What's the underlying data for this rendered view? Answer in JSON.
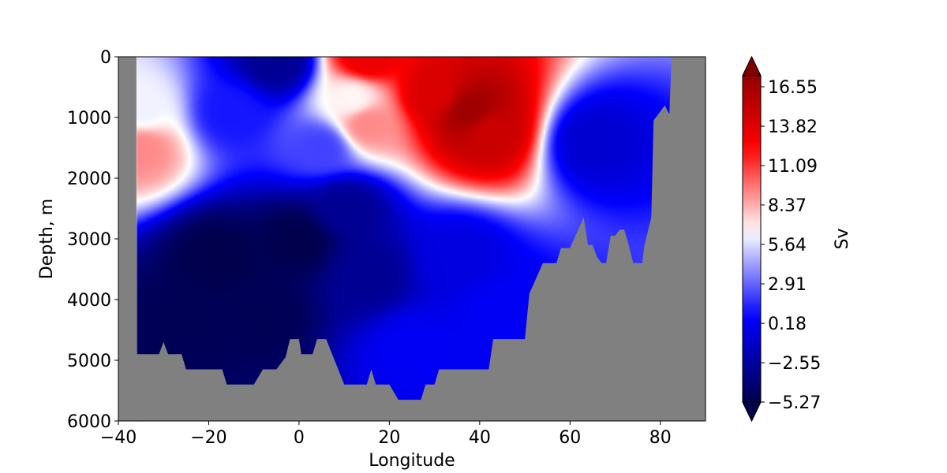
{
  "chart_data": {
    "type": "heatmap",
    "title": "",
    "xlabel": "Longitude",
    "ylabel": "Depth, m",
    "xlim": [
      -40,
      90
    ],
    "ylim": [
      6000,
      0
    ],
    "xticks": [
      -40,
      -20,
      0,
      20,
      40,
      60,
      80
    ],
    "xtick_labels": [
      "−40",
      "−20",
      "0",
      "20",
      "40",
      "60",
      "80"
    ],
    "yticks": [
      0,
      1000,
      2000,
      3000,
      4000,
      5000,
      6000
    ],
    "ytick_labels": [
      "0",
      "1000",
      "2000",
      "3000",
      "4000",
      "5000",
      "6000"
    ],
    "colorbar": {
      "label": "Sv",
      "min": -5.27,
      "max": 17.9,
      "extend": "both",
      "colormap": "seismic",
      "ticks": [
        -5.27,
        -2.55,
        0.18,
        2.91,
        5.64,
        8.37,
        11.09,
        13.82,
        16.55
      ],
      "tick_labels": [
        "−5.27",
        "−2.55",
        "0.18",
        "2.91",
        "5.64",
        "8.37",
        "11.09",
        "13.82",
        "16.55"
      ]
    },
    "land_color": "#808080",
    "ocean_west_edge_lon": -36,
    "bathymetry": [
      [
        -36,
        4900
      ],
      [
        -31,
        4900
      ],
      [
        -30,
        4700
      ],
      [
        -29,
        4900
      ],
      [
        -26,
        4900
      ],
      [
        -25,
        5150
      ],
      [
        -17,
        5150
      ],
      [
        -16,
        5400
      ],
      [
        -10,
        5400
      ],
      [
        -8,
        5150
      ],
      [
        -5,
        5150
      ],
      [
        -3,
        4950
      ],
      [
        -2,
        4650
      ],
      [
        0,
        4650
      ],
      [
        0.5,
        4900
      ],
      [
        3,
        4900
      ],
      [
        4,
        4650
      ],
      [
        6,
        4650
      ],
      [
        10,
        5400
      ],
      [
        15,
        5400
      ],
      [
        16,
        5150
      ],
      [
        17,
        5400
      ],
      [
        20,
        5400
      ],
      [
        22,
        5650
      ],
      [
        27,
        5650
      ],
      [
        28,
        5400
      ],
      [
        30,
        5400
      ],
      [
        31,
        5150
      ],
      [
        42,
        5150
      ],
      [
        43,
        4650
      ],
      [
        50,
        4650
      ],
      [
        51,
        3900
      ],
      [
        54,
        3400
      ],
      [
        57,
        3400
      ],
      [
        58,
        3150
      ],
      [
        60,
        3150
      ],
      [
        63,
        2650
      ],
      [
        64,
        3100
      ],
      [
        65,
        3100
      ],
      [
        66,
        3300
      ],
      [
        67,
        3400
      ],
      [
        68,
        3400
      ],
      [
        69,
        2950
      ],
      [
        70,
        2950
      ],
      [
        71,
        2850
      ],
      [
        72,
        2850
      ],
      [
        73,
        3100
      ],
      [
        74,
        3400
      ],
      [
        76,
        3400
      ],
      [
        76.5,
        3100
      ],
      [
        77,
        2950
      ],
      [
        78,
        2650
      ],
      [
        78.5,
        1050
      ],
      [
        81,
        800
      ],
      [
        82,
        950
      ],
      [
        82.5,
        0
      ]
    ],
    "field_features": [
      {
        "lon": -18,
        "depth": 3300,
        "value": -5.27
      },
      {
        "lon": 0,
        "depth": 3000,
        "value": -5.27
      },
      {
        "lon": -25,
        "depth": 4300,
        "value": -5.0
      },
      {
        "lon": -8,
        "depth": 4200,
        "value": -5.0
      },
      {
        "lon": 15,
        "depth": 3600,
        "value": -3.0
      },
      {
        "lon": 10,
        "depth": 2500,
        "value": -3.0
      },
      {
        "lon": 35,
        "depth": 3300,
        "value": -0.5
      },
      {
        "lon": 45,
        "depth": 4200,
        "value": 0.18
      },
      {
        "lon": 25,
        "depth": 4800,
        "value": 0.18
      },
      {
        "lon": 38,
        "depth": 900,
        "value": 16.55
      },
      {
        "lon": 42,
        "depth": 1200,
        "value": 14.5
      },
      {
        "lon": 30,
        "depth": 600,
        "value": 13.8
      },
      {
        "lon": 15,
        "depth": 1100,
        "value": 9.0
      },
      {
        "lon": 12,
        "depth": 700,
        "value": 6.5
      },
      {
        "lon": 15,
        "depth": 20,
        "value": 13.0
      },
      {
        "lon": -35,
        "depth": 1500,
        "value": 9.0
      },
      {
        "lon": -35,
        "depth": 900,
        "value": 6.0
      },
      {
        "lon": -5,
        "depth": 100,
        "value": -3.0
      },
      {
        "lon": 65,
        "depth": 1400,
        "value": -1.0
      },
      {
        "lon": -15,
        "depth": 900,
        "value": 1.0
      },
      {
        "lon": 5,
        "depth": 1500,
        "value": 2.0
      }
    ]
  }
}
